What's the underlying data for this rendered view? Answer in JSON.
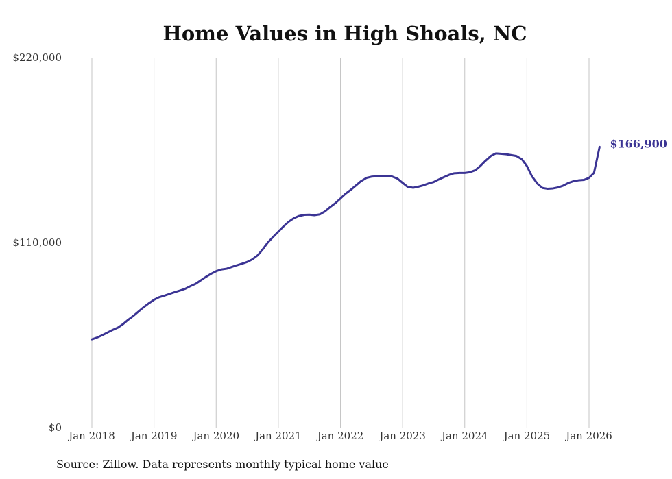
{
  "chart_data": {
    "type": "line",
    "title": "Home Values in High Shoals, NC",
    "xlabel": "",
    "ylabel": "",
    "source_note": "Source: Zillow. Data represents monthly typical home value",
    "ylim": [
      0,
      220000
    ],
    "y_ticks": [
      {
        "value": 0,
        "label": "$0"
      },
      {
        "value": 110000,
        "label": "$110,000"
      },
      {
        "value": 220000,
        "label": "$220,000"
      }
    ],
    "x_ticks": [
      {
        "value": 2018,
        "label": "Jan 2018"
      },
      {
        "value": 2019,
        "label": "Jan 2019"
      },
      {
        "value": 2020,
        "label": "Jan 2020"
      },
      {
        "value": 2021,
        "label": "Jan 2021"
      },
      {
        "value": 2022,
        "label": "Jan 2022"
      },
      {
        "value": 2023,
        "label": "Jan 2023"
      },
      {
        "value": 2024,
        "label": "Jan 2024"
      },
      {
        "value": 2025,
        "label": "Jan 2025"
      },
      {
        "value": 2026,
        "label": "Jan 2026"
      }
    ],
    "xlim": [
      2018,
      2026.17
    ],
    "grid": "vertical",
    "line_color": "#3b3494",
    "end_label": "$166,900",
    "series": [
      {
        "name": "Typical home value",
        "x": [
          2018.0,
          2018.08,
          2018.17,
          2018.25,
          2018.33,
          2018.42,
          2018.5,
          2018.58,
          2018.67,
          2018.75,
          2018.83,
          2018.92,
          2019.0,
          2019.08,
          2019.17,
          2019.25,
          2019.33,
          2019.42,
          2019.5,
          2019.58,
          2019.67,
          2019.75,
          2019.83,
          2019.92,
          2020.0,
          2020.08,
          2020.17,
          2020.25,
          2020.33,
          2020.42,
          2020.5,
          2020.58,
          2020.67,
          2020.75,
          2020.83,
          2020.92,
          2021.0,
          2021.08,
          2021.17,
          2021.25,
          2021.33,
          2021.42,
          2021.5,
          2021.58,
          2021.67,
          2021.75,
          2021.83,
          2021.92,
          2022.0,
          2022.08,
          2022.17,
          2022.25,
          2022.33,
          2022.42,
          2022.5,
          2022.58,
          2022.67,
          2022.75,
          2022.83,
          2022.92,
          2023.0,
          2023.08,
          2023.17,
          2023.25,
          2023.33,
          2023.42,
          2023.5,
          2023.58,
          2023.67,
          2023.75,
          2023.83,
          2023.92,
          2024.0,
          2024.08,
          2024.17,
          2024.25,
          2024.33,
          2024.42,
          2024.5,
          2024.58,
          2024.67,
          2024.75,
          2024.83,
          2024.92,
          2025.0,
          2025.08,
          2025.17,
          2025.25,
          2025.33,
          2025.42,
          2025.5,
          2025.58,
          2025.67,
          2025.75,
          2025.83,
          2025.92,
          2026.0,
          2026.08,
          2026.17
        ],
        "values": [
          52500,
          53500,
          55000,
          56500,
          58000,
          59500,
          61500,
          64000,
          66500,
          69000,
          71500,
          74000,
          76000,
          77500,
          78500,
          79500,
          80500,
          81500,
          82500,
          84000,
          85500,
          87500,
          89500,
          91500,
          93000,
          94000,
          94500,
          95500,
          96500,
          97500,
          98500,
          100000,
          102500,
          106000,
          110000,
          113500,
          116500,
          119500,
          122500,
          124500,
          125800,
          126500,
          126600,
          126300,
          126800,
          128500,
          131000,
          133500,
          136200,
          139000,
          141500,
          144000,
          146500,
          148500,
          149200,
          149400,
          149500,
          149600,
          149300,
          148000,
          145500,
          143200,
          142600,
          143200,
          144000,
          145200,
          146000,
          147500,
          149000,
          150300,
          151200,
          151400,
          151400,
          151800,
          153000,
          155500,
          158500,
          161500,
          163000,
          162800,
          162500,
          162000,
          161500,
          159500,
          155500,
          149500,
          145000,
          142500,
          142000,
          142200,
          142800,
          143800,
          145500,
          146500,
          147000,
          147300,
          148500,
          151500,
          166900
        ]
      }
    ]
  }
}
